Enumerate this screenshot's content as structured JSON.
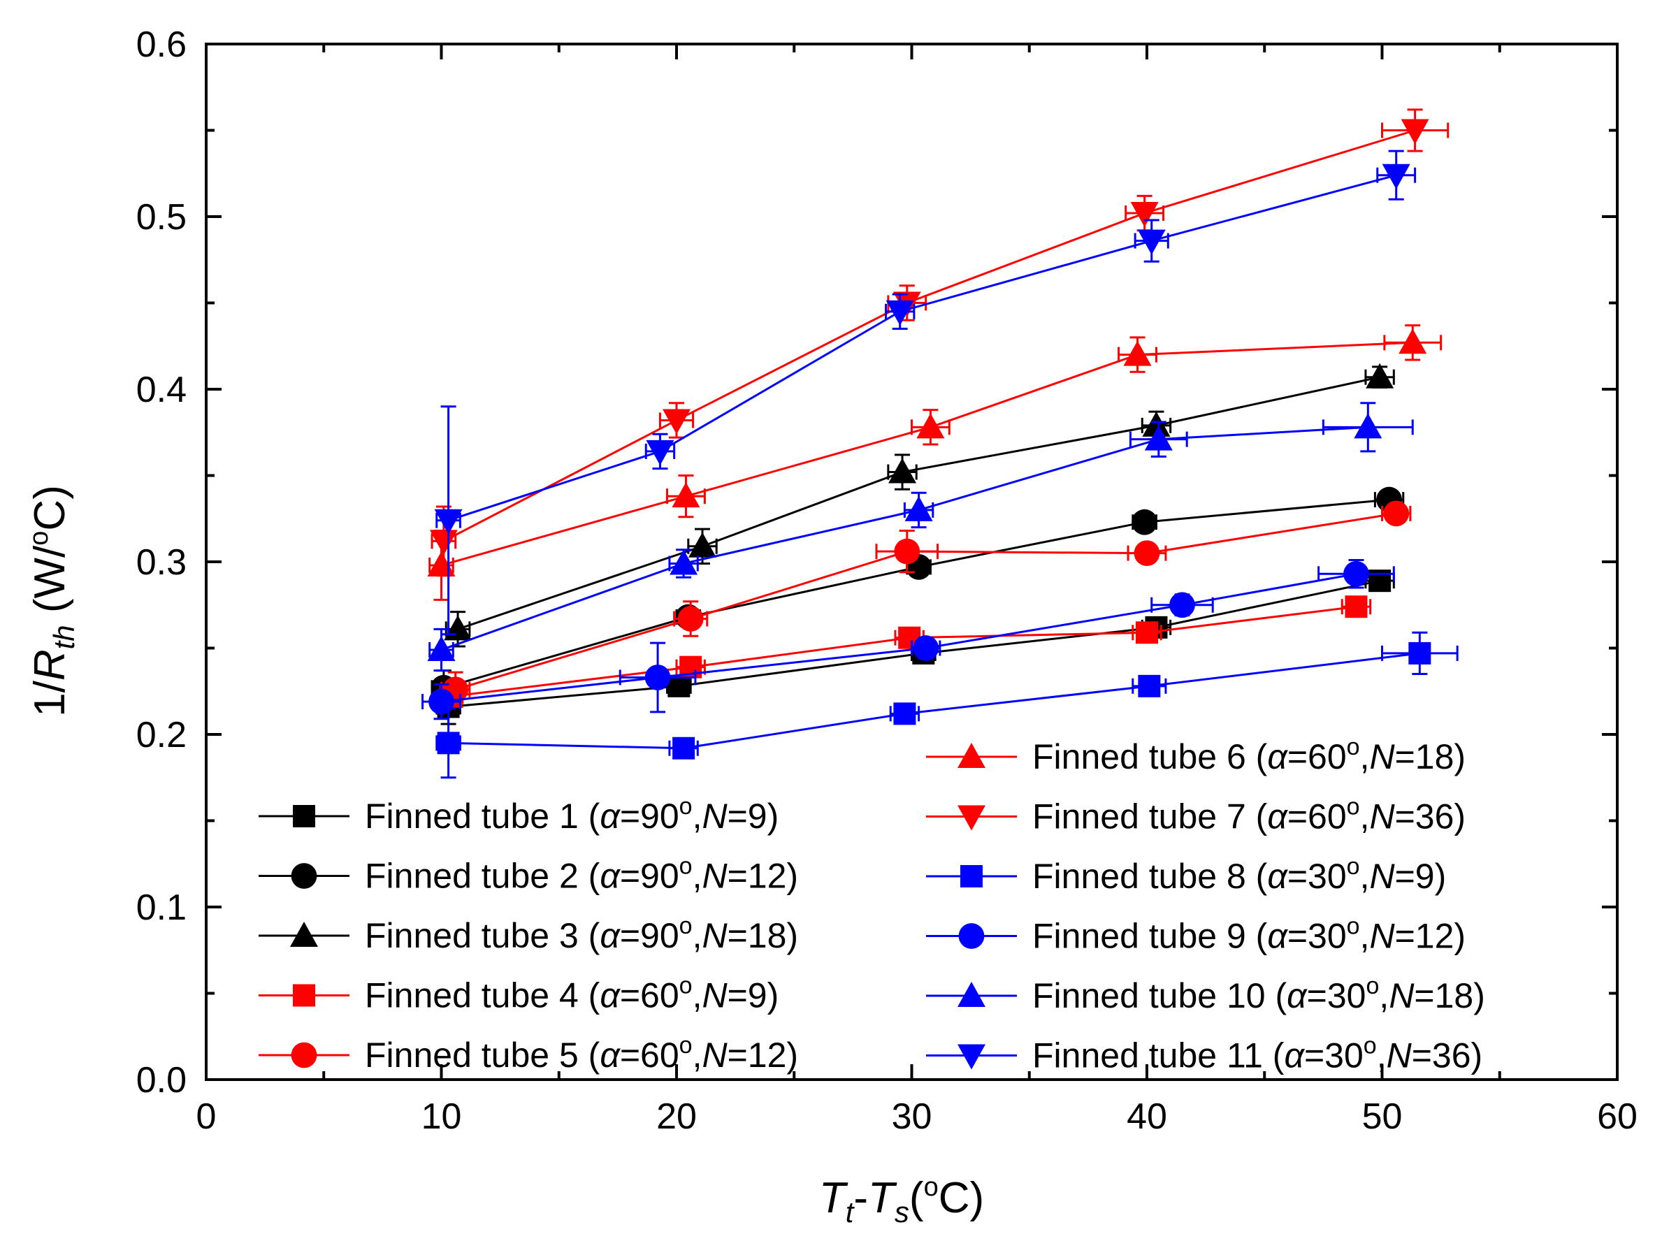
{
  "chart_data": {
    "type": "line",
    "title": "",
    "xlabel": {
      "base": "T",
      "sub1": "t",
      "dash": "-",
      "base2": "T",
      "sub2": "s",
      "unit_open": "(",
      "deg": "o",
      "unit_close": "C)"
    },
    "ylabel": {
      "prefix": "1/",
      "base": "R",
      "sub": "th",
      "unit_open": " (W/",
      "deg": "o",
      "unit_close": "C)"
    },
    "xlim": [
      0,
      60
    ],
    "ylim": [
      0,
      0.6
    ],
    "x_ticks": [
      "0",
      "10",
      "20",
      "30",
      "40",
      "50",
      "60"
    ],
    "y_ticks": [
      "0.0",
      "0.1",
      "0.2",
      "0.3",
      "0.4",
      "0.5",
      "0.6"
    ],
    "legend_position": "lower-middle",
    "series": [
      {
        "name": "Finned tube 1",
        "angle": "90",
        "n": "9",
        "color": "#000000",
        "marker": "square",
        "x": [
          10.3,
          20.1,
          30.5,
          40.4,
          49.9
        ],
        "y": [
          0.216,
          0.228,
          0.247,
          0.262,
          0.289
        ],
        "xerr": [
          0.5,
          0.5,
          0.5,
          0.6,
          0.6
        ],
        "yerr": [
          0.01,
          0.005,
          0.005,
          0.005,
          0.005
        ]
      },
      {
        "name": "Finned tube 2",
        "angle": "90",
        "n": "12",
        "color": "#000000",
        "marker": "circle",
        "x": [
          10.1,
          20.5,
          30.3,
          39.9,
          50.3
        ],
        "y": [
          0.227,
          0.268,
          0.297,
          0.323,
          0.336
        ],
        "xerr": [
          0.5,
          0.5,
          0.5,
          0.5,
          0.6
        ],
        "yerr": [
          0.01,
          0.005,
          0.005,
          0.005,
          0.005
        ]
      },
      {
        "name": "Finned tube 3",
        "angle": "90",
        "n": "18",
        "color": "#000000",
        "marker": "triangle-up",
        "x": [
          10.7,
          21.1,
          29.6,
          40.4,
          49.9
        ],
        "y": [
          0.261,
          0.309,
          0.352,
          0.379,
          0.407
        ],
        "xerr": [
          0.5,
          0.6,
          0.6,
          0.6,
          0.6
        ],
        "yerr": [
          0.01,
          0.01,
          0.01,
          0.008,
          0.006
        ]
      },
      {
        "name": "Finned tube 4",
        "angle": "60",
        "n": "9",
        "color": "#ff0000",
        "marker": "square",
        "x": [
          10.4,
          20.6,
          29.9,
          40.0,
          48.9
        ],
        "y": [
          0.222,
          0.239,
          0.256,
          0.259,
          0.274
        ],
        "xerr": [
          0.5,
          0.6,
          0.6,
          0.6,
          0.6
        ],
        "yerr": [
          0.006,
          0.005,
          0.005,
          0.005,
          0.005
        ]
      },
      {
        "name": "Finned tube 5",
        "angle": "60",
        "n": "12",
        "color": "#ff0000",
        "marker": "circle",
        "x": [
          10.6,
          20.6,
          29.8,
          40.0,
          50.6
        ],
        "y": [
          0.226,
          0.267,
          0.306,
          0.305,
          0.328
        ],
        "xerr": [
          0.6,
          0.7,
          1.3,
          0.8,
          0.6
        ],
        "yerr": [
          0.01,
          0.01,
          0.012,
          0.005,
          0.005
        ]
      },
      {
        "name": "Finned tube 6",
        "angle": "60",
        "n": "18",
        "color": "#ff0000",
        "marker": "triangle-up",
        "x": [
          10.0,
          20.4,
          30.8,
          39.6,
          51.3
        ],
        "y": [
          0.298,
          0.338,
          0.378,
          0.42,
          0.427
        ],
        "xerr": [
          0.5,
          0.8,
          0.8,
          0.8,
          1.2
        ],
        "yerr": [
          0.02,
          0.012,
          0.01,
          0.01,
          0.01
        ]
      },
      {
        "name": "Finned tube 7",
        "angle": "60",
        "n": "36",
        "color": "#ff0000",
        "marker": "triangle-down",
        "x": [
          10.1,
          20.0,
          29.8,
          39.9,
          51.4
        ],
        "y": [
          0.312,
          0.382,
          0.45,
          0.502,
          0.55
        ],
        "xerr": [
          0.5,
          0.7,
          0.8,
          0.8,
          1.4
        ],
        "yerr": [
          0.02,
          0.01,
          0.01,
          0.01,
          0.012
        ]
      },
      {
        "name": "Finned tube 8",
        "angle": "30",
        "n": "9",
        "color": "#0000ff",
        "marker": "square",
        "x": [
          10.3,
          20.3,
          29.7,
          40.1,
          51.6
        ],
        "y": [
          0.195,
          0.192,
          0.212,
          0.228,
          0.247
        ],
        "xerr": [
          0.5,
          0.6,
          0.6,
          0.7,
          1.6
        ],
        "yerr": [
          0.02,
          0.005,
          0.005,
          0.005,
          0.012
        ]
      },
      {
        "name": "Finned tube 9",
        "angle": "30",
        "n": "12",
        "color": "#0000ff",
        "marker": "circle",
        "x": [
          10.0,
          19.2,
          30.6,
          41.5,
          48.9
        ],
        "y": [
          0.219,
          0.233,
          0.25,
          0.275,
          0.293
        ],
        "xerr": [
          0.8,
          1.6,
          0.6,
          1.3,
          1.6
        ],
        "yerr": [
          0.01,
          0.02,
          0.006,
          0.006,
          0.008
        ]
      },
      {
        "name": "Finned tube 10",
        "angle": "30",
        "n": "18",
        "color": "#0000ff",
        "marker": "triangle-up",
        "x": [
          10.0,
          20.3,
          30.3,
          40.5,
          49.4
        ],
        "y": [
          0.249,
          0.299,
          0.33,
          0.371,
          0.378
        ],
        "xerr": [
          0.5,
          0.6,
          0.6,
          1.2,
          1.9
        ],
        "yerr": [
          0.012,
          0.008,
          0.01,
          0.01,
          0.014
        ]
      },
      {
        "name": "Finned tube 11",
        "angle": "30",
        "n": "36",
        "color": "#0000ff",
        "marker": "triangle-down",
        "x": [
          10.3,
          19.3,
          29.5,
          40.2,
          50.6
        ],
        "y": [
          0.324,
          0.364,
          0.445,
          0.486,
          0.524
        ],
        "xerr": [
          0.5,
          0.6,
          0.6,
          0.7,
          0.8
        ],
        "yerr": [
          0.066,
          0.01,
          0.01,
          0.012,
          0.014
        ]
      }
    ]
  }
}
